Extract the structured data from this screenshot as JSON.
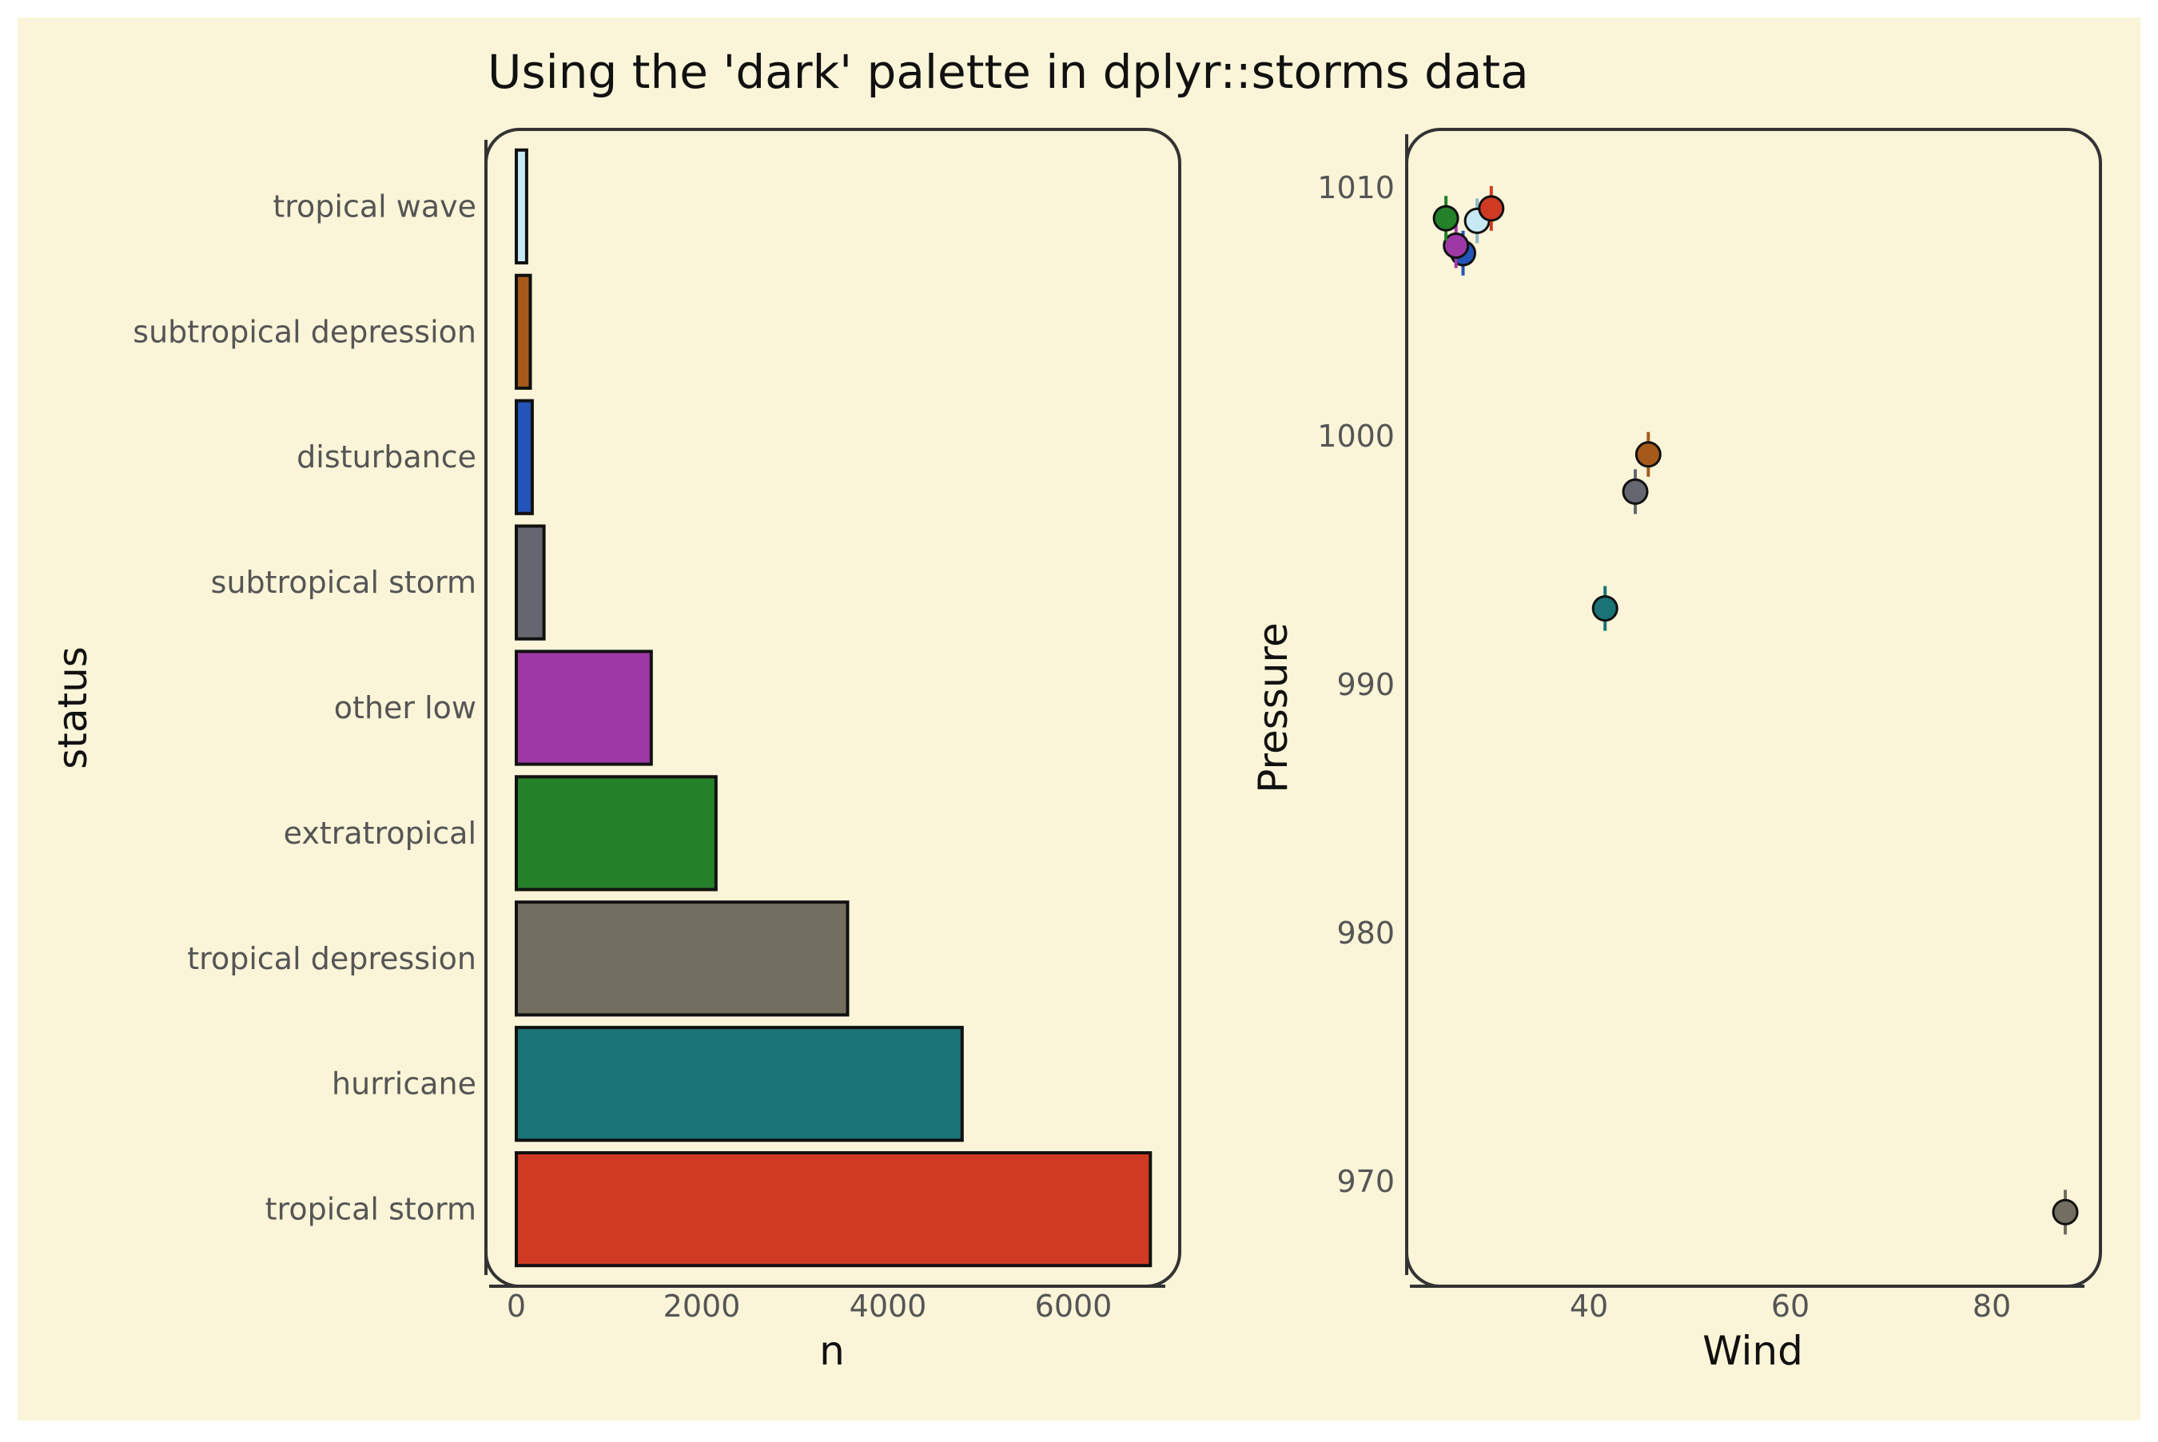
{
  "page": {
    "background": "#ffffff",
    "panel_background": "#faf5d8"
  },
  "chart_data": [
    {
      "type": "bar",
      "orientation": "horizontal",
      "title": "Using the 'dark' palette in dplyr::storms data",
      "xlabel": "n",
      "ylabel": "status",
      "xlim": [
        0,
        7000
      ],
      "x_ticks": [
        "0",
        "2000",
        "4000",
        "6000"
      ],
      "categories": [
        "tropical wave",
        "subtropical depression",
        "disturbance",
        "subtropical storm",
        "other low",
        "extratropical",
        "tropical depression",
        "hurricane",
        "tropical storm"
      ],
      "values": [
        111,
        151,
        171,
        298,
        1453,
        2151,
        3569,
        4803,
        6830
      ],
      "colors": [
        "#c7e9f4",
        "#a65a1a",
        "#2354b8",
        "#646770",
        "#9e38a5",
        "#25802a",
        "#726f60",
        "#1a7375",
        "#cf3a22"
      ],
      "grid": false
    },
    {
      "type": "scatter",
      "xlabel": "Wind",
      "ylabel": "Pressure",
      "xlim": [
        24,
        90
      ],
      "ylim": [
        966,
        1011
      ],
      "x_ticks": [
        "40",
        "60",
        "80"
      ],
      "y_ticks": [
        "970",
        "980",
        "990",
        "1000",
        "1010"
      ],
      "points": [
        {
          "category": "tropical wave",
          "x": 28.9,
          "y": 1008.7,
          "color": "#c7e9f4"
        },
        {
          "category": "subtropical depression",
          "x": 45.9,
          "y": 999.3,
          "color": "#a65a1a"
        },
        {
          "category": "disturbance",
          "x": 27.5,
          "y": 1007.4,
          "color": "#2354b8"
        },
        {
          "category": "subtropical storm",
          "x": 44.6,
          "y": 997.8,
          "color": "#646770"
        },
        {
          "category": "other low",
          "x": 26.8,
          "y": 1007.7,
          "color": "#9e38a5"
        },
        {
          "category": "extratropical",
          "x": 25.8,
          "y": 1008.8,
          "color": "#25802a"
        },
        {
          "category": "tropical depression",
          "x": 87.3,
          "y": 968.8,
          "color": "#726f60"
        },
        {
          "category": "hurricane",
          "x": 41.6,
          "y": 993.1,
          "color": "#1a7375"
        },
        {
          "category": "tropical storm",
          "x": 30.3,
          "y": 1009.2,
          "color": "#cf3a22"
        }
      ],
      "grid": false
    }
  ]
}
